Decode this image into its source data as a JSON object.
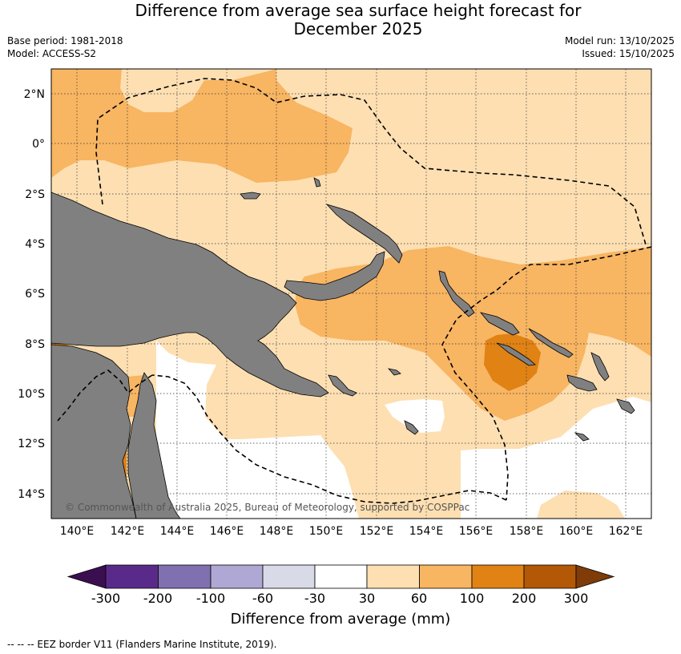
{
  "header": {
    "title_line1": "Difference from average sea surface height forecast for",
    "title_line2": "December 2025",
    "base_period": "Base period: 1981-2018",
    "model": "Model: ACCESS-S2",
    "model_run": "Model run: 13/10/2025",
    "issued": "Issued: 15/10/2025"
  },
  "map": {
    "lat_labels": [
      "2°N",
      "0°",
      "2°S",
      "4°S",
      "6°S",
      "8°S",
      "10°S",
      "12°S",
      "14°S"
    ],
    "lat_values": [
      2,
      0,
      -2,
      -4,
      -6,
      -8,
      -10,
      -12,
      -14
    ],
    "lon_labels": [
      "140°E",
      "142°E",
      "144°E",
      "146°E",
      "148°E",
      "150°E",
      "152°E",
      "154°E",
      "156°E",
      "158°E",
      "160°E",
      "162°E"
    ],
    "lon_values": [
      140,
      142,
      144,
      146,
      148,
      150,
      152,
      154,
      156,
      158,
      160,
      162
    ],
    "lon_range": [
      139,
      163
    ],
    "lat_range": [
      -15,
      3
    ],
    "copyright": "© Commonwealth of Australia 2025, Bureau of Meteorology, supported by COSPPac",
    "land_color": "#808080"
  },
  "colorbar": {
    "ticks": [
      "-300",
      "-200",
      "-100",
      "-60",
      "-30",
      "30",
      "60",
      "100",
      "200",
      "300"
    ],
    "colors": [
      "#3b0f4f",
      "#5a2a8a",
      "#8070b0",
      "#b0a8d4",
      "#d8dae8",
      "#ffffff",
      "#fddfb2",
      "#f8b562",
      "#e08214",
      "#b35806",
      "#7f3b08"
    ],
    "label": "Difference from average (mm)"
  },
  "footnote": "--  --  -- EEZ border V11 (Flanders Marine Institute, 2019)."
}
